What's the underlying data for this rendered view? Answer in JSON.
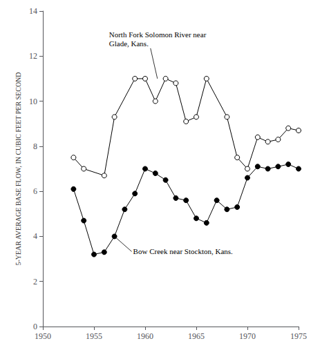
{
  "chart_data": {
    "type": "line",
    "ylabel": "5-YEAR AVERAGE BASE FLOW, IN CUBIC FEET PER SECOND",
    "xlim": [
      1950,
      1975
    ],
    "ylim": [
      0,
      14
    ],
    "xticks": [
      1950,
      1955,
      1960,
      1965,
      1970,
      1975
    ],
    "yticks": [
      0,
      2,
      4,
      6,
      8,
      10,
      12,
      14
    ],
    "grid": false,
    "series": [
      {
        "color": "#000000",
        "marker": "open",
        "x": [
          1953,
          1954,
          1956,
          1957,
          1959,
          1960,
          1961,
          1962,
          1963,
          1964,
          1965,
          1966,
          1968,
          1969,
          1970,
          1971,
          1972,
          1973,
          1974,
          1975
        ],
        "values": [
          7.5,
          7.0,
          6.7,
          9.3,
          11.0,
          11.0,
          10.0,
          11.0,
          10.8,
          9.1,
          9.3,
          11.0,
          9.3,
          7.5,
          7.0,
          8.4,
          8.2,
          8.3,
          8.8,
          8.7
        ]
      },
      {
        "color": "#000000",
        "marker": "filled",
        "x": [
          1953,
          1954,
          1955,
          1956,
          1957,
          1958,
          1959,
          1960,
          1961,
          1962,
          1963,
          1964,
          1965,
          1966,
          1967,
          1968,
          1969,
          1970,
          1971,
          1972,
          1973,
          1974,
          1975
        ],
        "values": [
          6.1,
          4.7,
          3.2,
          3.3,
          4.0,
          5.2,
          5.9,
          7.0,
          6.8,
          6.5,
          5.7,
          5.6,
          4.8,
          4.6,
          5.6,
          5.2,
          5.3,
          6.6,
          7.1,
          7.0,
          7.1,
          7.2,
          7.0
        ]
      }
    ],
    "annotations": [
      {
        "text": "North Fork Solomon River near\nGlade, Kans.",
        "x": 1961.2,
        "y": 11.0
      },
      {
        "text": "Bow Creek near Stockton, Kans.",
        "x": 1957.0,
        "y": 4.0
      }
    ]
  }
}
